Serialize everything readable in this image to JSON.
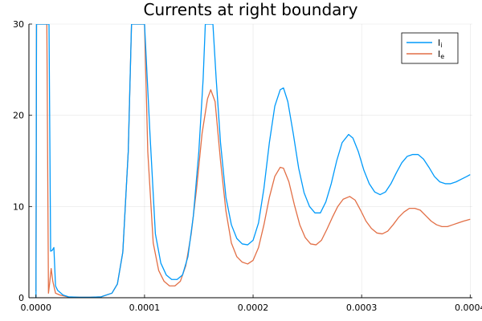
{
  "chart_data": {
    "type": "line",
    "title": "Currents at right boundary",
    "xlabel": "",
    "ylabel": "",
    "xlim": [
      -6.5e-06,
      0.000402
    ],
    "ylim": [
      0,
      30
    ],
    "x_ticks": [
      0,
      0.0001,
      0.0002,
      0.0003,
      0.0004
    ],
    "x_tick_labels": [
      "0.0000",
      "0.0001",
      "0.0002",
      "0.0003",
      "0.0004"
    ],
    "y_ticks": [
      0,
      10,
      20,
      30
    ],
    "y_tick_labels": [
      "0",
      "10",
      "20",
      "30"
    ],
    "grid": true,
    "legend_position": "top-right",
    "series": [
      {
        "name": "I",
        "subscript": "i",
        "color": "#009AFA",
        "points": [
          [
            0.0,
            0
          ],
          [
            5e-07,
            30
          ],
          [
            1.2e-05,
            30
          ],
          [
            1.35e-05,
            5.1
          ],
          [
            1.5e-05,
            5.2
          ],
          [
            1.65e-05,
            5.5
          ],
          [
            1.8e-05,
            1.3
          ],
          [
            2e-05,
            0.8
          ],
          [
            2.5e-05,
            0.3
          ],
          [
            3e-05,
            0.1
          ],
          [
            4e-05,
            0.05
          ],
          [
            5e-05,
            0.05
          ],
          [
            6e-05,
            0.1
          ],
          [
            7e-05,
            0.5
          ],
          [
            7.5e-05,
            1.5
          ],
          [
            8e-05,
            5
          ],
          [
            8.5e-05,
            16
          ],
          [
            8.8e-05,
            30
          ],
          [
            0.0001,
            30
          ],
          [
            0.000105,
            18
          ],
          [
            0.00011,
            7
          ],
          [
            0.000115,
            3.8
          ],
          [
            0.00012,
            2.5
          ],
          [
            0.000125,
            2.0
          ],
          [
            0.00013,
            2.0
          ],
          [
            0.000135,
            2.5
          ],
          [
            0.00014,
            4.5
          ],
          [
            0.000145,
            9
          ],
          [
            0.00015,
            16
          ],
          [
            0.000154,
            24
          ],
          [
            0.000156,
            30
          ],
          [
            0.000163,
            30
          ],
          [
            0.000166,
            24
          ],
          [
            0.00017,
            17
          ],
          [
            0.000175,
            11
          ],
          [
            0.00018,
            8
          ],
          [
            0.000185,
            6.5
          ],
          [
            0.00019,
            5.9
          ],
          [
            0.000195,
            5.8
          ],
          [
            0.0002,
            6.3
          ],
          [
            0.000205,
            8.2
          ],
          [
            0.00021,
            12
          ],
          [
            0.000215,
            17
          ],
          [
            0.00022,
            21
          ],
          [
            0.000225,
            22.8
          ],
          [
            0.000228,
            23.0
          ],
          [
            0.000232,
            21.5
          ],
          [
            0.000237,
            18
          ],
          [
            0.000242,
            14.2
          ],
          [
            0.000247,
            11.5
          ],
          [
            0.000252,
            10
          ],
          [
            0.000257,
            9.3
          ],
          [
            0.000262,
            9.3
          ],
          [
            0.000267,
            10.5
          ],
          [
            0.000272,
            12.5
          ],
          [
            0.000277,
            15
          ],
          [
            0.000282,
            17
          ],
          [
            0.000288,
            17.9
          ],
          [
            0.000292,
            17.5
          ],
          [
            0.000297,
            16
          ],
          [
            0.000302,
            14
          ],
          [
            0.000307,
            12.5
          ],
          [
            0.000312,
            11.6
          ],
          [
            0.000317,
            11.3
          ],
          [
            0.000322,
            11.6
          ],
          [
            0.000327,
            12.5
          ],
          [
            0.000332,
            13.7
          ],
          [
            0.000337,
            14.8
          ],
          [
            0.000342,
            15.5
          ],
          [
            0.000347,
            15.7
          ],
          [
            0.000352,
            15.7
          ],
          [
            0.000357,
            15.2
          ],
          [
            0.000362,
            14.3
          ],
          [
            0.000367,
            13.3
          ],
          [
            0.000372,
            12.7
          ],
          [
            0.000377,
            12.5
          ],
          [
            0.000382,
            12.5
          ],
          [
            0.000387,
            12.7
          ],
          [
            0.000392,
            13.0
          ],
          [
            0.000397,
            13.3
          ],
          [
            0.0004,
            13.5
          ]
        ]
      },
      {
        "name": "I",
        "subscript": "e",
        "color": "#E26F46",
        "points": [
          [
            0.0,
            0.7
          ],
          [
            5e-07,
            30
          ],
          [
            1e-05,
            30
          ],
          [
            1.15e-05,
            0.5
          ],
          [
            1.25e-05,
            1.5
          ],
          [
            1.4e-05,
            3.2
          ],
          [
            1.55e-05,
            1.8
          ],
          [
            1.8e-05,
            0.5
          ],
          [
            2.2e-05,
            0.3
          ],
          [
            3e-05,
            0.08
          ],
          [
            4e-05,
            0.05
          ],
          [
            5e-05,
            0.05
          ],
          [
            6e-05,
            0.1
          ],
          [
            7e-05,
            0.5
          ],
          [
            7.5e-05,
            1.5
          ],
          [
            8e-05,
            5
          ],
          [
            8.5e-05,
            16
          ],
          [
            8.8e-05,
            30
          ],
          [
            0.0001,
            30
          ],
          [
            0.000103,
            16
          ],
          [
            0.000108,
            6
          ],
          [
            0.000113,
            3
          ],
          [
            0.000118,
            1.8
          ],
          [
            0.000123,
            1.3
          ],
          [
            0.000128,
            1.3
          ],
          [
            0.000133,
            1.8
          ],
          [
            0.000138,
            3.5
          ],
          [
            0.000143,
            7
          ],
          [
            0.000148,
            12
          ],
          [
            0.000153,
            18
          ],
          [
            0.000158,
            21.8
          ],
          [
            0.000161,
            22.8
          ],
          [
            0.000165,
            21.5
          ],
          [
            0.00017,
            15
          ],
          [
            0.000175,
            9.5
          ],
          [
            0.00018,
            6
          ],
          [
            0.000185,
            4.5
          ],
          [
            0.00019,
            3.9
          ],
          [
            0.000195,
            3.7
          ],
          [
            0.0002,
            4.1
          ],
          [
            0.000205,
            5.5
          ],
          [
            0.00021,
            8
          ],
          [
            0.000215,
            11
          ],
          [
            0.00022,
            13.3
          ],
          [
            0.000225,
            14.3
          ],
          [
            0.000228,
            14.2
          ],
          [
            0.000233,
            12.7
          ],
          [
            0.000238,
            10.2
          ],
          [
            0.000243,
            8
          ],
          [
            0.000248,
            6.6
          ],
          [
            0.000253,
            5.9
          ],
          [
            0.000258,
            5.8
          ],
          [
            0.000263,
            6.3
          ],
          [
            0.000268,
            7.5
          ],
          [
            0.000273,
            8.8
          ],
          [
            0.000278,
            10
          ],
          [
            0.000283,
            10.8
          ],
          [
            0.000289,
            11.1
          ],
          [
            0.000294,
            10.7
          ],
          [
            0.000299,
            9.6
          ],
          [
            0.000304,
            8.4
          ],
          [
            0.000309,
            7.6
          ],
          [
            0.000314,
            7.1
          ],
          [
            0.000319,
            7.0
          ],
          [
            0.000324,
            7.3
          ],
          [
            0.000329,
            8.0
          ],
          [
            0.000334,
            8.8
          ],
          [
            0.000339,
            9.4
          ],
          [
            0.000344,
            9.8
          ],
          [
            0.000349,
            9.8
          ],
          [
            0.000354,
            9.6
          ],
          [
            0.000359,
            9.0
          ],
          [
            0.000364,
            8.4
          ],
          [
            0.000369,
            8.0
          ],
          [
            0.000374,
            7.8
          ],
          [
            0.000379,
            7.8
          ],
          [
            0.000384,
            8.0
          ],
          [
            0.000389,
            8.2
          ],
          [
            0.000394,
            8.4
          ],
          [
            0.0004,
            8.6
          ]
        ]
      }
    ]
  }
}
